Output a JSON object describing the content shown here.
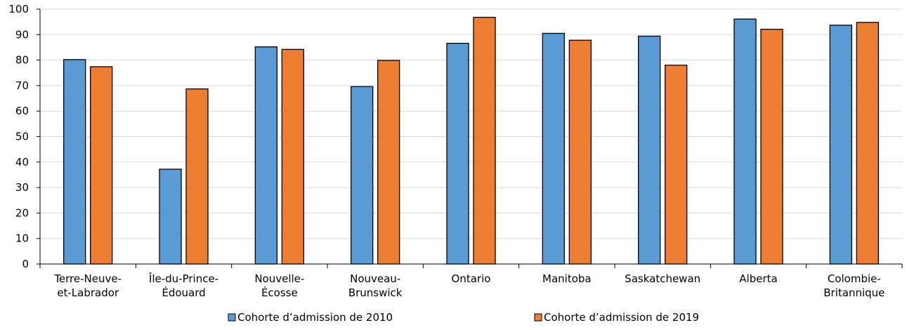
{
  "chart_data": {
    "type": "bar",
    "categories": [
      [
        "Terre-Neuve-",
        "et-Labrador"
      ],
      [
        "Île-du-Prince-",
        "Édouard"
      ],
      [
        "Nouvelle-",
        "Écosse"
      ],
      [
        "Nouveau-",
        "Brunswick"
      ],
      [
        "Ontario"
      ],
      [
        "Manitoba"
      ],
      [
        "Saskatchewan"
      ],
      [
        "Alberta"
      ],
      [
        "Colombie-",
        "Britannique"
      ]
    ],
    "series": [
      {
        "name": "Cohorte d’admission de 2010",
        "color": "#5b9bd5",
        "values": [
          80.2,
          37.2,
          85.2,
          69.6,
          86.6,
          90.5,
          89.4,
          96.1,
          93.7
        ]
      },
      {
        "name": "Cohorte d’admission de 2019",
        "color": "#ed7d31",
        "values": [
          77.4,
          68.7,
          84.2,
          79.9,
          96.8,
          87.8,
          78.0,
          92.1,
          94.8
        ]
      }
    ],
    "ylim": [
      0,
      100
    ],
    "yticks": [
      0,
      10,
      20,
      30,
      40,
      50,
      60,
      70,
      80,
      90,
      100
    ],
    "grid": true,
    "legend": "bottom"
  }
}
